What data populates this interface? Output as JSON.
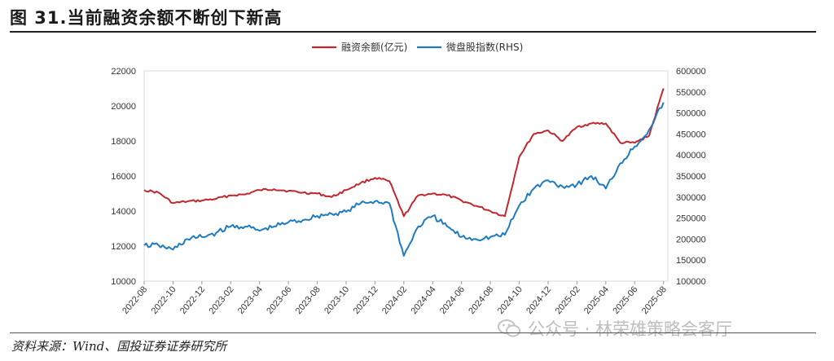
{
  "header": {
    "title": "图 31.当前融资余额不断创下新高"
  },
  "footer": {
    "source": "资料来源：Wind、国投证券证券研究所"
  },
  "watermark": {
    "text": "公众号 · 林荣雄策略会客厅",
    "icon": "wechat-icon"
  },
  "chart_data": {
    "type": "line",
    "title": "",
    "legend_position": "top",
    "grid": false,
    "x_ticks": [
      "2022-08",
      "2022-10",
      "2022-12",
      "2023-02",
      "2023-04",
      "2023-06",
      "2023-08",
      "2023-10",
      "2023-12",
      "2024-02",
      "2024-04",
      "2024-06",
      "2024-08",
      "2024-10",
      "2024-12",
      "2025-02",
      "2025-04",
      "2025-06",
      "2025-08"
    ],
    "y_left": {
      "min": 10000,
      "max": 22000,
      "ticks": [
        10000,
        12000,
        14000,
        16000,
        18000,
        20000,
        22000
      ]
    },
    "y_right": {
      "min": 100000,
      "max": 600000,
      "ticks": [
        100000,
        150000,
        200000,
        250000,
        300000,
        350000,
        400000,
        450000,
        500000,
        550000,
        600000
      ]
    },
    "series": [
      {
        "name": "融资余额(亿元)",
        "axis": "left",
        "color": "#c0282d",
        "x": [
          "2022-08",
          "2022-09",
          "2022-10",
          "2022-11",
          "2022-12",
          "2023-01",
          "2023-02",
          "2023-03",
          "2023-04",
          "2023-05",
          "2023-06",
          "2023-07",
          "2023-08",
          "2023-09",
          "2023-10",
          "2023-11",
          "2023-12",
          "2024-01",
          "2024-02",
          "2024-03",
          "2024-04",
          "2024-05",
          "2024-06",
          "2024-07",
          "2024-08",
          "2024-09",
          "2024-10",
          "2024-11",
          "2024-12",
          "2025-01",
          "2025-02",
          "2025-03",
          "2025-04",
          "2025-05",
          "2025-06",
          "2025-07",
          "2025-08"
        ],
        "values": [
          15200,
          15050,
          14450,
          14550,
          14600,
          14700,
          14900,
          14950,
          15200,
          15250,
          15150,
          15050,
          15000,
          14800,
          15200,
          15600,
          15900,
          15700,
          13700,
          14900,
          15000,
          14900,
          14600,
          14300,
          14000,
          13700,
          17100,
          18400,
          18600,
          18000,
          18800,
          19000,
          19000,
          17900,
          17900,
          18300,
          21000
        ]
      },
      {
        "name": "微盘股指数(RHS)",
        "axis": "right",
        "color": "#1f7bbf",
        "x": [
          "2022-08",
          "2022-09",
          "2022-10",
          "2022-11",
          "2022-12",
          "2023-01",
          "2023-02",
          "2023-03",
          "2023-04",
          "2023-05",
          "2023-06",
          "2023-07",
          "2023-08",
          "2023-09",
          "2023-10",
          "2023-11",
          "2023-12",
          "2024-01",
          "2024-02",
          "2024-03",
          "2024-04",
          "2024-05",
          "2024-06",
          "2024-07",
          "2024-08",
          "2024-09",
          "2024-10",
          "2024-11",
          "2024-12",
          "2025-01",
          "2025-02",
          "2025-03",
          "2025-04",
          "2025-05",
          "2025-06",
          "2025-07",
          "2025-08"
        ],
        "values": [
          185000,
          185000,
          175000,
          200000,
          205000,
          215000,
          230000,
          230000,
          220000,
          230000,
          240000,
          245000,
          255000,
          260000,
          265000,
          285000,
          290000,
          285000,
          160000,
          230000,
          255000,
          230000,
          205000,
          200000,
          205000,
          210000,
          280000,
          320000,
          340000,
          325000,
          330000,
          350000,
          320000,
          380000,
          420000,
          460000,
          525000
        ]
      }
    ]
  }
}
